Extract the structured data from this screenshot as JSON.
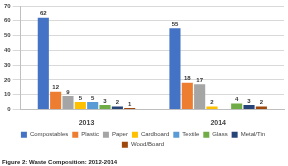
{
  "chart_data": {
    "type": "bar",
    "title": "Figure 2: Waste Composition: 2012-2014",
    "categories": [
      "2013",
      "2014"
    ],
    "series": [
      {
        "name": "Compostables",
        "color": "#4472c4",
        "values": [
          62,
          55
        ]
      },
      {
        "name": "Plastic",
        "color": "#ed7d31",
        "values": [
          12,
          18
        ]
      },
      {
        "name": "Paper",
        "color": "#a5a5a5",
        "values": [
          9,
          17
        ]
      },
      {
        "name": "Cardboard",
        "color": "#ffc000",
        "values": [
          5,
          2
        ]
      },
      {
        "name": "Textile",
        "color": "#5b9bd5",
        "values": [
          5,
          null
        ]
      },
      {
        "name": "Glass",
        "color": "#70ad47",
        "values": [
          3,
          4
        ]
      },
      {
        "name": "Metal/Tin",
        "color": "#264478",
        "values": [
          2,
          3
        ]
      },
      {
        "name": "Wood/Board",
        "color": "#9e480e",
        "values": [
          1,
          2
        ]
      }
    ],
    "ylim": [
      0,
      70
    ],
    "yticks": [
      0,
      10,
      20,
      30,
      40,
      50,
      60,
      70
    ],
    "grid": true,
    "legend": "bottom",
    "data_labels": true
  }
}
